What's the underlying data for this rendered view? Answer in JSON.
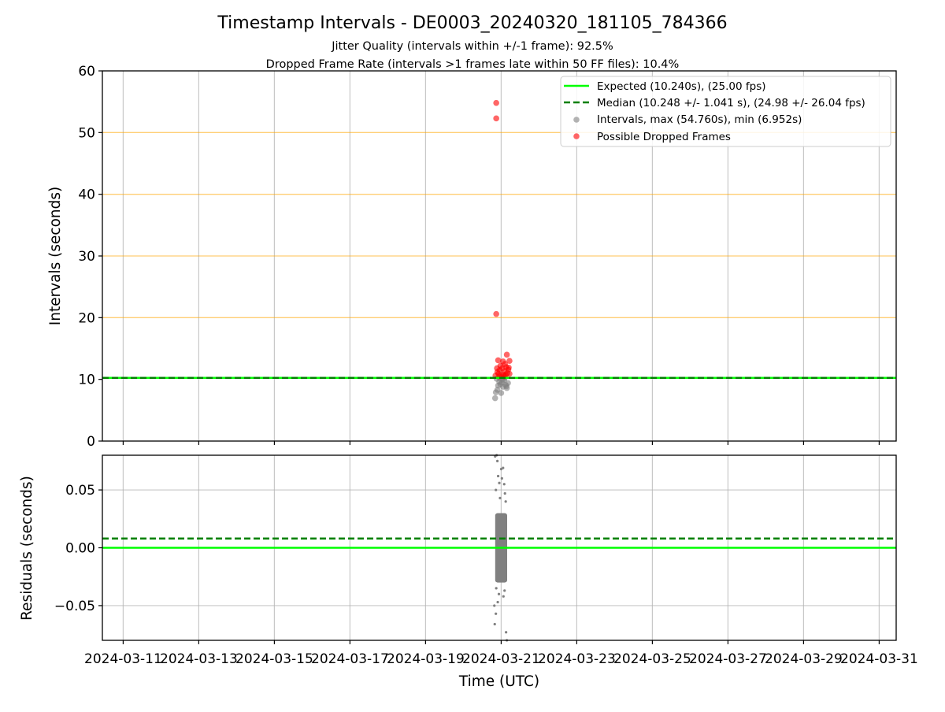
{
  "chart_data": {
    "type": "scatter",
    "title": "Timestamp Intervals - DE0003_20240320_181105_784366",
    "subtitle_lines": [
      "Jitter Quality (intervals within +/-1 frame): 92.5%",
      "Dropped Frame Rate (intervals >1 frames late within 50 FF files): 10.4%"
    ],
    "xlabel": "Time (UTC)",
    "x_ticks": [
      "2024-03-11",
      "2024-03-13",
      "2024-03-15",
      "2024-03-17",
      "2024-03-19",
      "2024-03-21",
      "2024-03-23",
      "2024-03-25",
      "2024-03-27",
      "2024-03-29",
      "2024-03-31"
    ],
    "x_tick_days": [
      0,
      2,
      4,
      6,
      8,
      10,
      12,
      14,
      16,
      18,
      20
    ],
    "xlim_days": [
      -0.55,
      20.45
    ],
    "top_panel": {
      "ylabel": "Intervals (seconds)",
      "ylim": [
        0,
        60
      ],
      "yticks": [
        "0",
        "10",
        "20",
        "30",
        "40",
        "50",
        "60"
      ],
      "ytick_values": [
        0,
        10,
        20,
        30,
        40,
        50,
        60
      ],
      "hlines": {
        "expected": 10.24,
        "median": 10.248,
        "orange_grid": [
          20,
          30,
          40,
          50
        ]
      },
      "legend": {
        "position": "top-right",
        "entries": [
          "Expected (10.240s), (25.00 fps)",
          "Median (10.248 +/- 1.041 s), (24.98 +/- 26.04 fps)",
          "Intervals, max (54.760s), min (6.952s)",
          "Possible Dropped Frames"
        ]
      },
      "series": [
        {
          "name": "Intervals, max (54.760s), min (6.952s)",
          "color": "#808080",
          "points": [
            [
              9.84,
              6.95
            ],
            [
              9.86,
              7.9
            ],
            [
              9.9,
              8.3
            ],
            [
              9.92,
              9.0
            ],
            [
              9.95,
              9.6
            ],
            [
              9.98,
              9.2
            ],
            [
              10.02,
              9.5
            ],
            [
              10.05,
              8.8
            ],
            [
              10.08,
              9.9
            ],
            [
              10.12,
              9.1
            ],
            [
              10.15,
              8.6
            ],
            [
              10.18,
              9.4
            ],
            [
              9.88,
              10.1
            ],
            [
              9.96,
              10.2
            ],
            [
              10.04,
              10.0
            ],
            [
              10.1,
              10.3
            ],
            [
              10.0,
              7.8
            ],
            [
              10.14,
              8.9
            ]
          ]
        },
        {
          "name": "Possible Dropped Frames",
          "color": "#ff0000",
          "points": [
            [
              9.87,
              54.8
            ],
            [
              9.87,
              52.3
            ],
            [
              9.87,
              20.6
            ],
            [
              10.15,
              14.0
            ],
            [
              9.92,
              13.1
            ],
            [
              10.22,
              13.0
            ],
            [
              9.9,
              11.2
            ],
            [
              9.93,
              10.9
            ],
            [
              9.96,
              11.5
            ],
            [
              10.0,
              10.6
            ],
            [
              10.03,
              11.8
            ],
            [
              10.06,
              10.8
            ],
            [
              10.09,
              11.3
            ],
            [
              10.12,
              10.7
            ],
            [
              10.16,
              11.0
            ],
            [
              10.19,
              11.6
            ],
            [
              10.22,
              10.9
            ],
            [
              9.85,
              10.6
            ],
            [
              9.98,
              12.2
            ],
            [
              10.1,
              12.5
            ],
            [
              10.05,
              12.9
            ],
            [
              10.2,
              11.9
            ],
            [
              9.95,
              10.5
            ],
            [
              10.08,
              10.5
            ],
            [
              10.13,
              12.0
            ],
            [
              9.89,
              11.8
            ]
          ]
        }
      ]
    },
    "bottom_panel": {
      "ylabel": "Residuals (seconds)",
      "ylim": [
        -0.08,
        0.08
      ],
      "yticks": [
        "−0.05",
        "0.00",
        "0.05"
      ],
      "ytick_values": [
        -0.05,
        0.0,
        0.05
      ],
      "hlines": {
        "expected": 0.0,
        "median": 0.008
      },
      "series": [
        {
          "name": "Residuals",
          "color": "#808080",
          "points": [
            [
              9.84,
              0.079
            ],
            [
              9.88,
              0.08
            ],
            [
              9.9,
              0.075
            ],
            [
              10.0,
              0.068
            ],
            [
              10.05,
              0.069
            ],
            [
              9.92,
              0.062
            ],
            [
              10.02,
              0.06
            ],
            [
              9.95,
              0.056
            ],
            [
              10.08,
              0.055
            ],
            [
              9.86,
              0.05
            ],
            [
              10.1,
              0.047
            ],
            [
              9.97,
              0.043
            ],
            [
              10.12,
              0.04
            ],
            [
              9.87,
              -0.035
            ],
            [
              9.94,
              -0.04
            ],
            [
              10.06,
              -0.042
            ],
            [
              10.09,
              -0.037
            ],
            [
              9.91,
              -0.047
            ],
            [
              9.82,
              -0.05
            ],
            [
              9.86,
              -0.057
            ],
            [
              9.83,
              -0.066
            ],
            [
              10.15,
              -0.08
            ],
            [
              10.13,
              -0.073
            ]
          ]
        }
      ]
    },
    "colors": {
      "expected": "#00ff00",
      "median": "#008000",
      "orange_grid": "#ffa500",
      "grid": "#b0b0b0"
    }
  }
}
